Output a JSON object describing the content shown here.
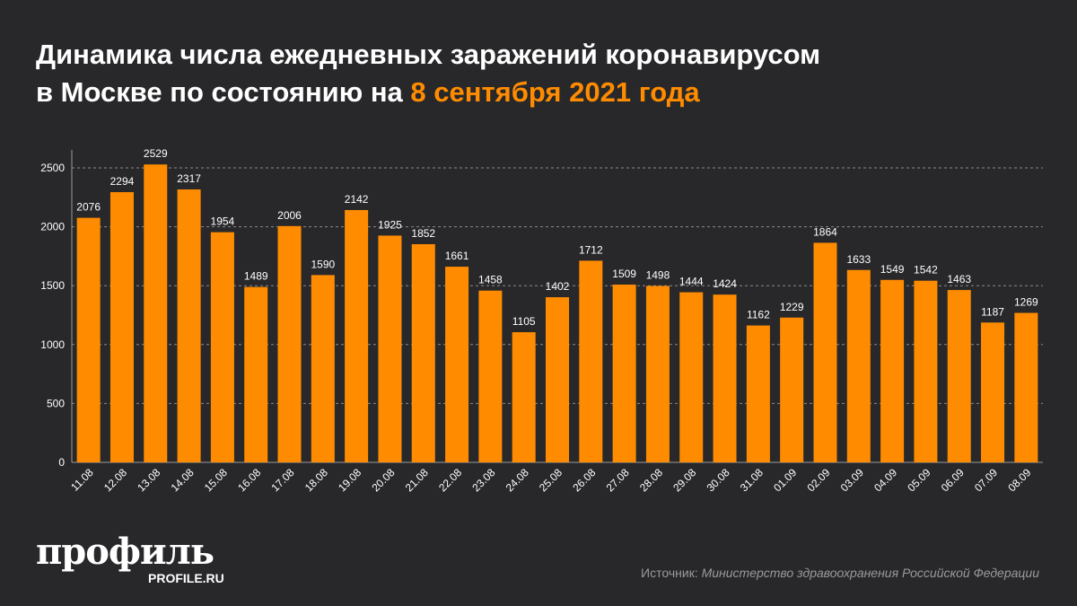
{
  "title": {
    "line1": "Динамика числа ежедневных заражений коронавирусом",
    "line2_prefix": "в Москве по состоянию на ",
    "line2_highlight": "8 сентября 2021 года"
  },
  "colors": {
    "bar": "#ff8c00",
    "background": "#28282b",
    "highlight": "#ff8c00"
  },
  "chart_data": {
    "type": "bar",
    "title": "Динамика числа ежедневных заражений коронавирусом в Москве по состоянию на 8 сентября 2021 года",
    "categories": [
      "11.08",
      "12.08",
      "13.08",
      "14.08",
      "15.08",
      "16.08",
      "17.08",
      "18.08",
      "19.08",
      "20.08",
      "21.08",
      "22.08",
      "23.08",
      "24.08",
      "25.08",
      "26.08",
      "27.08",
      "28.08",
      "29.08",
      "30.08",
      "31.08",
      "01.09",
      "02.09",
      "03.09",
      "04.09",
      "05.09",
      "06.09",
      "07.09",
      "08.09"
    ],
    "values": [
      2076,
      2294,
      2529,
      2317,
      1954,
      1489,
      2006,
      1590,
      2142,
      1925,
      1852,
      1661,
      1458,
      1105,
      1402,
      1712,
      1509,
      1498,
      1444,
      1424,
      1162,
      1229,
      1864,
      1633,
      1549,
      1542,
      1463,
      1187,
      1269
    ],
    "yticks": [
      0,
      500,
      1000,
      1500,
      2000,
      2500
    ],
    "ylim": [
      0,
      2500
    ],
    "grid": true,
    "data_labels": true
  },
  "logo": {
    "main": "профиль",
    "sub": "PROFILE.RU"
  },
  "source": {
    "label": "Источник: ",
    "text": "Министерство здравоохранения Российской Федерации"
  }
}
